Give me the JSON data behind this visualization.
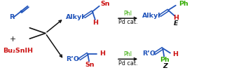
{
  "bg_color": "#ffffff",
  "blue": "#2255bb",
  "red": "#cc1111",
  "green": "#33aa00",
  "black": "#111111",
  "figsize": [
    3.44,
    1.17
  ],
  "dpi": 100,
  "allene_R": "R",
  "reagent_label": "Bu₂SnIH",
  "plus": "+",
  "top_left_label": "Alkyl",
  "top_sn": "Sn",
  "top_h": "H",
  "top_reagent1": "PhI",
  "top_reagent2": "Pd cat.",
  "top_right_label": "Alkyl",
  "top_right_ph": "Ph",
  "top_right_h": "H",
  "top_right_stereo": "E",
  "bot_left_label": "R’O",
  "bot_sn": "Sn",
  "bot_h": "H",
  "bot_reagent1": "PhI",
  "bot_reagent2": "Pd cat.",
  "bot_right_label": "R’O",
  "bot_right_ph": "Ph",
  "bot_right_h": "H",
  "bot_right_stereo": "Z"
}
